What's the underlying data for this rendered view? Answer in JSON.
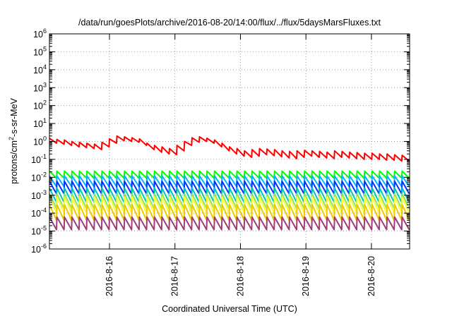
{
  "chart_data": {
    "type": "line",
    "title": "/data/run/goesPlots/archive/2016-08-20/14:00/flux/../flux/5daysMarsFluxes.txt",
    "xlabel": "Coordinated Universal Time (UTC)",
    "ylabel_prefix": "protons/cm",
    "ylabel_sup": "2",
    "ylabel_suffix": "-s-sr-MeV",
    "yscale": "log",
    "ylim": [
      1e-06,
      1000000.0
    ],
    "y_ticks": [
      {
        "base": "10",
        "exp": "-6"
      },
      {
        "base": "10",
        "exp": "-5"
      },
      {
        "base": "10",
        "exp": "-4"
      },
      {
        "base": "10",
        "exp": "-3"
      },
      {
        "base": "10",
        "exp": "-2"
      },
      {
        "base": "10",
        "exp": "-1"
      },
      {
        "base": "10",
        "exp": "0"
      },
      {
        "base": "10",
        "exp": "1"
      },
      {
        "base": "10",
        "exp": "2"
      },
      {
        "base": "10",
        "exp": "3"
      },
      {
        "base": "10",
        "exp": "4"
      },
      {
        "base": "10",
        "exp": "5"
      },
      {
        "base": "10",
        "exp": "6"
      }
    ],
    "xlim_days": [
      "2016-08-15 02:00",
      "2016-08-20 14:00"
    ],
    "x_ticks": [
      "2016-8-16",
      "2016-8-17",
      "2016-8-18",
      "2016-8-19",
      "2016-8-20"
    ],
    "grid": true,
    "series": [
      {
        "color": "#ff0000",
        "peaks": [
          1.5,
          1.3,
          1.2,
          1.0,
          0.9,
          0.8,
          0.7,
          0.9,
          1.4,
          2.0,
          1.8,
          1.6,
          1.4,
          0.8,
          0.6,
          0.5,
          0.4,
          0.6,
          1.0,
          1.6,
          1.8,
          1.5,
          1.2,
          0.8,
          0.5,
          0.4,
          0.3,
          0.35,
          0.4,
          0.38,
          0.35,
          0.3,
          0.28,
          0.3,
          0.32,
          0.3,
          0.28,
          0.25,
          0.3,
          0.28,
          0.25,
          0.24,
          0.22,
          0.22,
          0.2,
          0.2,
          0.18,
          0.17,
          0.22
        ],
        "troughs": [
          0.8,
          0.7,
          0.6,
          0.5,
          0.45,
          0.4,
          0.35,
          0.5,
          0.8,
          1.1,
          1.0,
          0.9,
          0.6,
          0.35,
          0.25,
          0.2,
          0.18,
          0.3,
          0.6,
          0.9,
          1.0,
          0.8,
          0.5,
          0.3,
          0.2,
          0.15,
          0.13,
          0.15,
          0.18,
          0.16,
          0.14,
          0.12,
          0.11,
          0.13,
          0.15,
          0.13,
          0.12,
          0.11,
          0.13,
          0.12,
          0.11,
          0.1,
          0.1,
          0.1,
          0.09,
          0.09,
          0.08,
          0.08,
          0.1
        ]
      },
      {
        "color": "#00ff00",
        "peak": 0.022,
        "trough": 0.009
      },
      {
        "color": "#00b4ff",
        "peak": 0.012,
        "trough": 0.003
      },
      {
        "color": "#0032ff",
        "peak": 0.006,
        "trough": 0.0012
      },
      {
        "color": "#00c8b4",
        "peak": 0.0025,
        "trough": 0.0004
      },
      {
        "color": "#8ce664",
        "peak": 0.0012,
        "trough": 0.00018
      },
      {
        "color": "#ffff32",
        "peak": 0.0008,
        "trough": 0.0001
      },
      {
        "color": "#f0c800",
        "peak": 0.0003,
        "trough": 4e-05
      },
      {
        "color": "#a03c78",
        "peak": 6e-05,
        "trough": 1.2e-05
      }
    ]
  }
}
